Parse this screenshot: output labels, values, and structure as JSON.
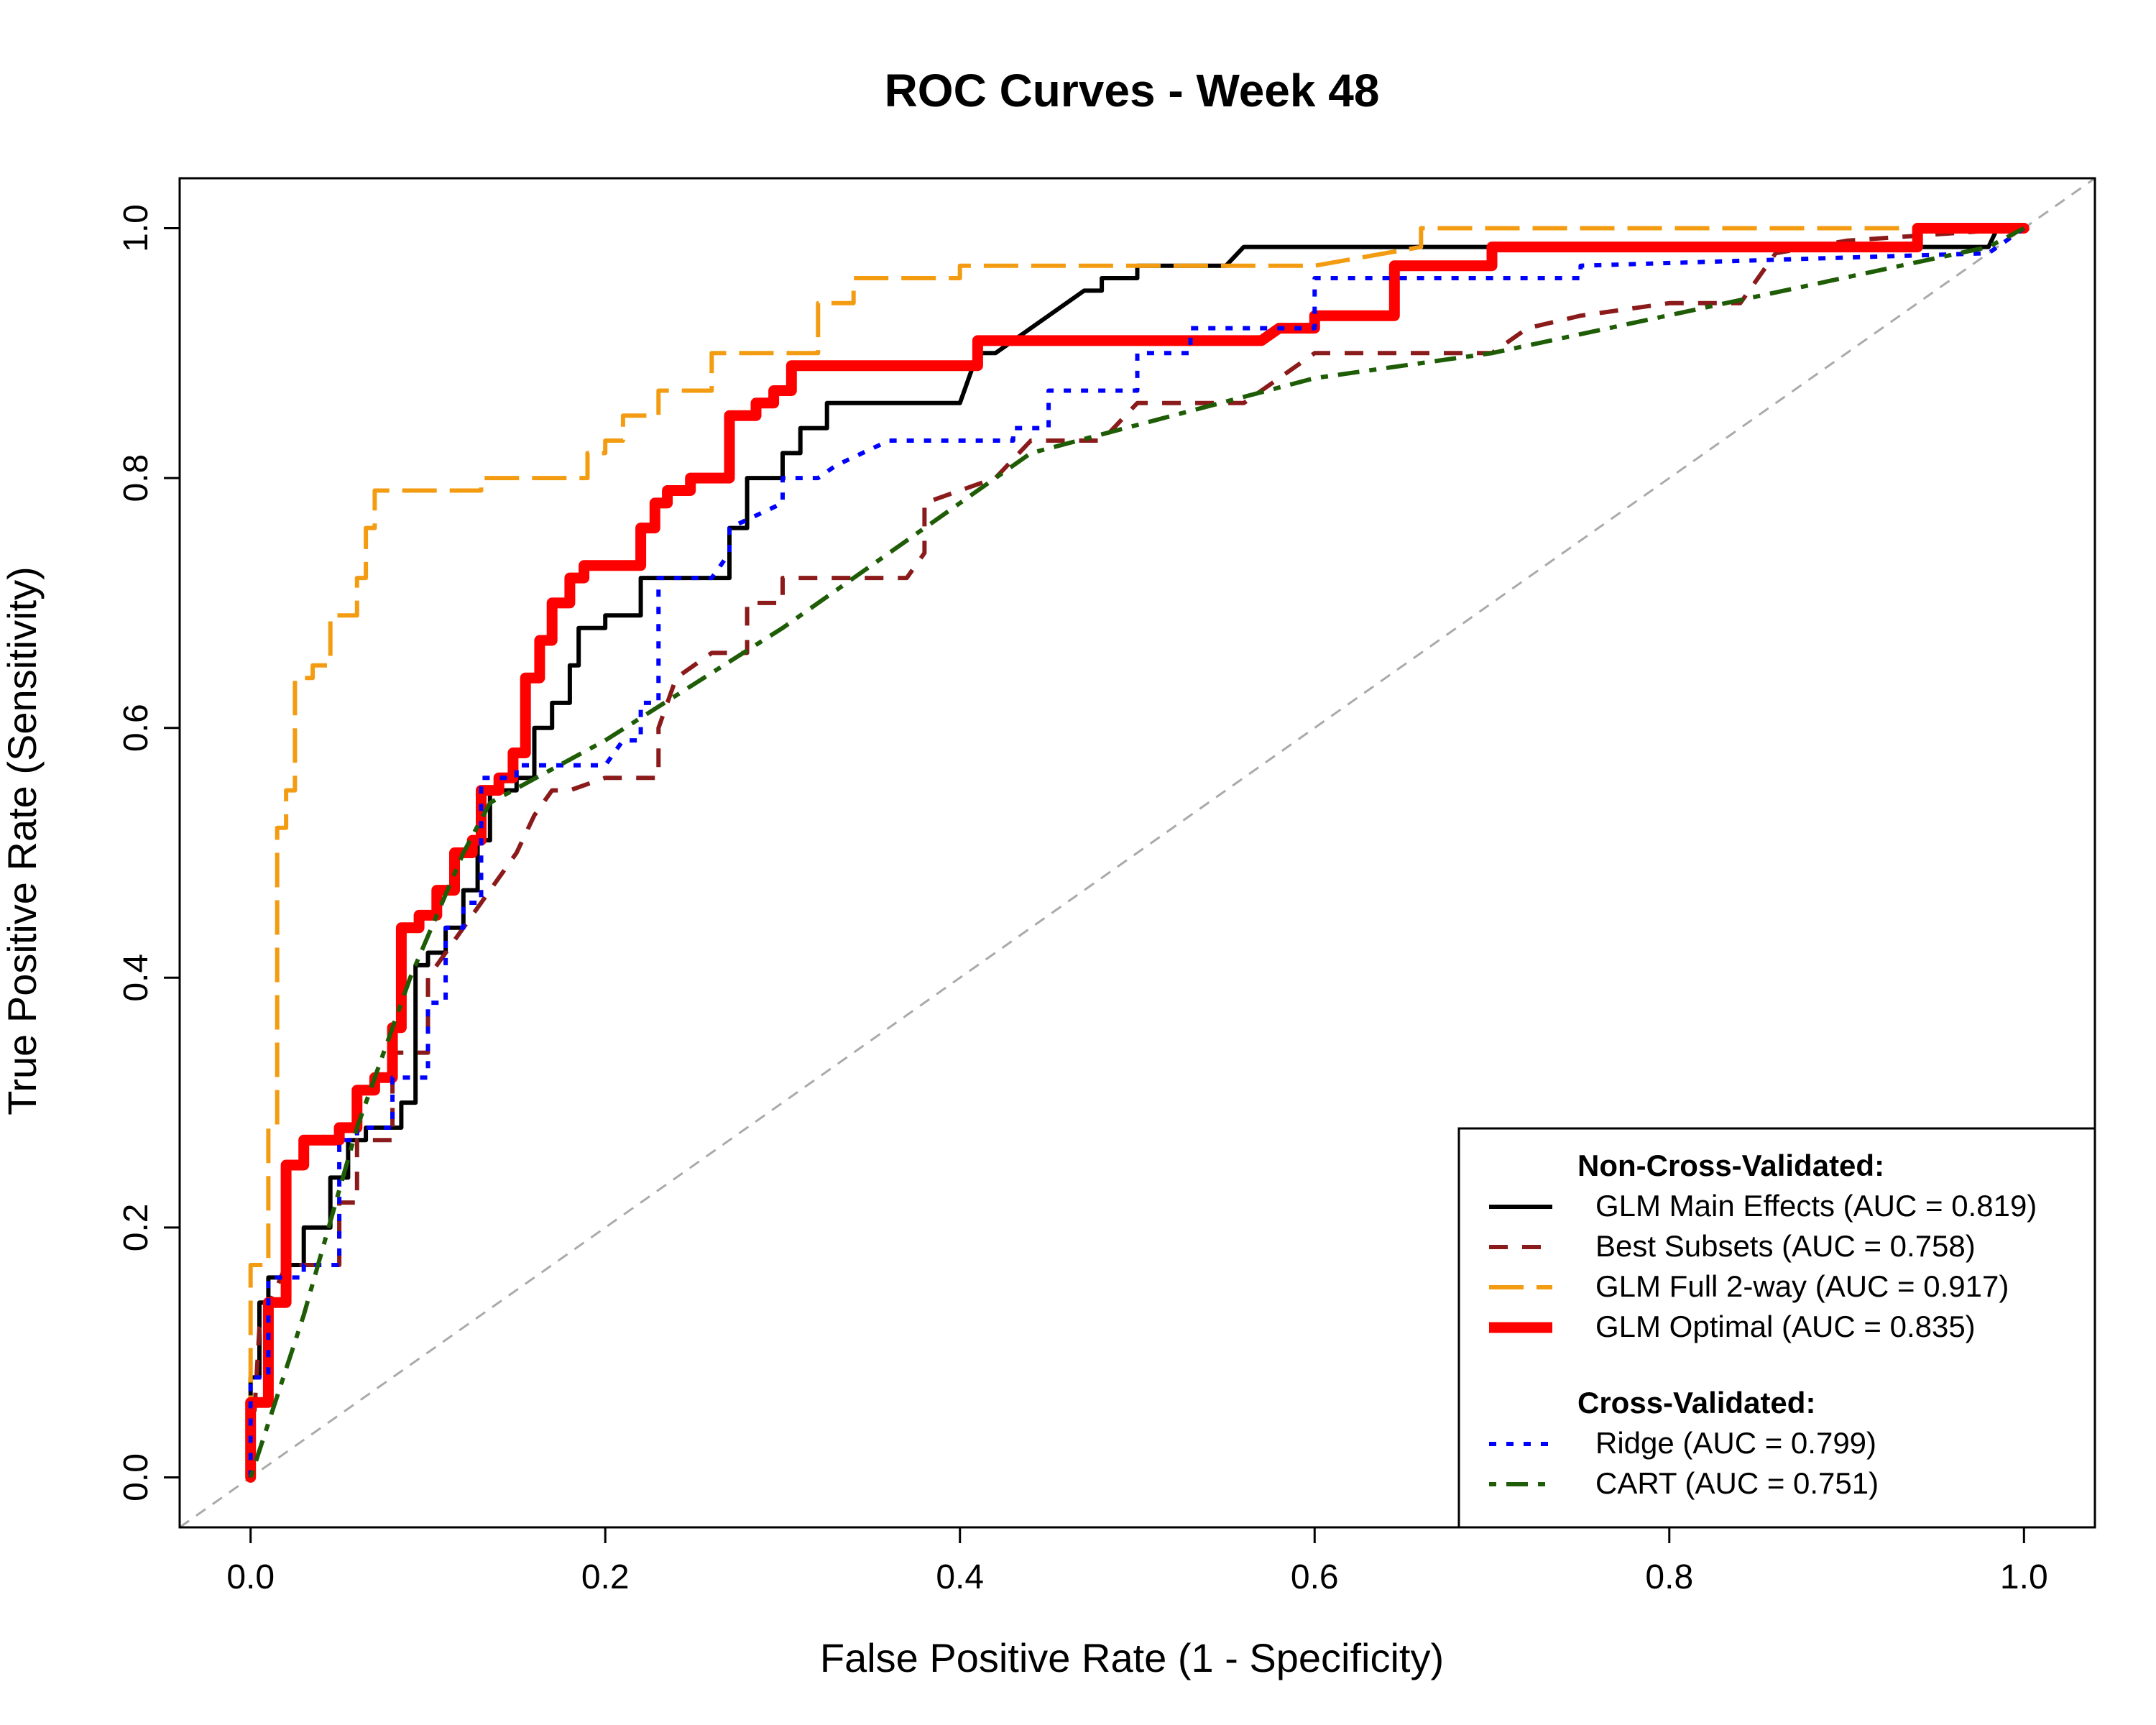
{
  "chart_data": {
    "type": "line",
    "title": "ROC Curves - Week 48",
    "xlabel": "False Positive Rate (1 - Specificity)",
    "ylabel": "True Positive Rate (Sensitivity)",
    "xlim": [
      0,
      1
    ],
    "ylim": [
      0,
      1
    ],
    "x_ticks": [
      "0.0",
      "0.2",
      "0.4",
      "0.6",
      "0.8",
      "1.0"
    ],
    "y_ticks": [
      "0.0",
      "0.2",
      "0.4",
      "0.6",
      "0.8",
      "1.0"
    ],
    "grid": false,
    "legend_position": "bottom-right",
    "legend_groups": [
      {
        "heading": "Non-Cross-Validated:",
        "series": [
          "glm_main",
          "best_subsets",
          "glm_full",
          "glm_optimal"
        ]
      },
      {
        "heading": "Cross-Validated:",
        "series": [
          "ridge",
          "cart"
        ]
      }
    ],
    "reference_line": {
      "x": [
        0,
        1
      ],
      "y": [
        0,
        1
      ],
      "color": "#aaaaaa",
      "style": "dashed"
    },
    "series": [
      {
        "id": "glm_main",
        "name": "GLM Main Effects (AUC = 0.819)",
        "color": "#000000",
        "style": "solid",
        "width": "medium",
        "x": [
          0,
          0,
          0.005,
          0.005,
          0.01,
          0.01,
          0.02,
          0.02,
          0.03,
          0.03,
          0.045,
          0.045,
          0.055,
          0.055,
          0.065,
          0.065,
          0.085,
          0.085,
          0.093,
          0.093,
          0.1,
          0.1,
          0.11,
          0.11,
          0.12,
          0.12,
          0.128,
          0.128,
          0.135,
          0.135,
          0.15,
          0.15,
          0.16,
          0.16,
          0.17,
          0.17,
          0.18,
          0.18,
          0.185,
          0.185,
          0.2,
          0.2,
          0.22,
          0.22,
          0.235,
          0.235,
          0.27,
          0.27,
          0.28,
          0.28,
          0.3,
          0.3,
          0.31,
          0.31,
          0.325,
          0.325,
          0.34,
          0.34,
          0.4,
          0.41,
          0.42,
          0.43,
          0.44,
          0.45,
          0.46,
          0.47,
          0.48,
          0.48,
          0.5,
          0.5,
          0.55,
          0.56,
          0.98,
          0.985,
          1
        ],
        "y": [
          0,
          0.08,
          0.08,
          0.14,
          0.14,
          0.16,
          0.16,
          0.17,
          0.17,
          0.2,
          0.2,
          0.24,
          0.24,
          0.27,
          0.27,
          0.28,
          0.28,
          0.3,
          0.3,
          0.41,
          0.41,
          0.42,
          0.42,
          0.44,
          0.44,
          0.47,
          0.47,
          0.51,
          0.51,
          0.55,
          0.55,
          0.56,
          0.56,
          0.6,
          0.6,
          0.62,
          0.62,
          0.65,
          0.65,
          0.68,
          0.68,
          0.69,
          0.69,
          0.72,
          0.72,
          0.72,
          0.72,
          0.76,
          0.76,
          0.8,
          0.8,
          0.82,
          0.82,
          0.84,
          0.84,
          0.86,
          0.86,
          0.86,
          0.86,
          0.9,
          0.9,
          0.91,
          0.92,
          0.93,
          0.94,
          0.95,
          0.95,
          0.96,
          0.96,
          0.97,
          0.97,
          0.985,
          0.985,
          1,
          1
        ]
      },
      {
        "id": "best_subsets",
        "name": "Best Subsets (AUC = 0.758)",
        "color": "#8b1a1a",
        "style": "dashed",
        "width": "medium",
        "x": [
          0,
          0.005,
          0.02,
          0.05,
          0.05,
          0.06,
          0.06,
          0.08,
          0.08,
          0.1,
          0.1,
          0.12,
          0.13,
          0.14,
          0.15,
          0.16,
          0.17,
          0.18,
          0.2,
          0.23,
          0.23,
          0.24,
          0.26,
          0.27,
          0.28,
          0.28,
          0.3,
          0.3,
          0.37,
          0.38,
          0.38,
          0.4,
          0.42,
          0.44,
          0.48,
          0.5,
          0.56,
          0.58,
          0.6,
          0.7,
          0.72,
          0.75,
          0.8,
          0.84,
          0.86,
          0.9,
          1
        ],
        "y": [
          0,
          0.12,
          0.17,
          0.17,
          0.22,
          0.22,
          0.27,
          0.27,
          0.34,
          0.34,
          0.4,
          0.44,
          0.46,
          0.48,
          0.5,
          0.53,
          0.55,
          0.55,
          0.56,
          0.56,
          0.6,
          0.64,
          0.66,
          0.66,
          0.66,
          0.7,
          0.7,
          0.72,
          0.72,
          0.74,
          0.78,
          0.79,
          0.8,
          0.83,
          0.83,
          0.86,
          0.86,
          0.88,
          0.9,
          0.9,
          0.92,
          0.93,
          0.94,
          0.94,
          0.98,
          0.99,
          1
        ]
      },
      {
        "id": "glm_full",
        "name": "GLM Full 2-way (AUC = 0.917)",
        "color": "#f39c12",
        "style": "longdash",
        "width": "medium",
        "x": [
          0,
          0,
          0.01,
          0.01,
          0.015,
          0.015,
          0.02,
          0.02,
          0.025,
          0.025,
          0.035,
          0.035,
          0.045,
          0.045,
          0.06,
          0.06,
          0.065,
          0.065,
          0.07,
          0.07,
          0.08,
          0.08,
          0.13,
          0.13,
          0.19,
          0.19,
          0.2,
          0.2,
          0.21,
          0.21,
          0.23,
          0.23,
          0.26,
          0.26,
          0.32,
          0.32,
          0.34,
          0.34,
          0.4,
          0.4,
          0.6,
          0.66,
          0.66,
          1
        ],
        "y": [
          0,
          0.17,
          0.17,
          0.28,
          0.28,
          0.52,
          0.52,
          0.55,
          0.55,
          0.64,
          0.64,
          0.65,
          0.65,
          0.69,
          0.69,
          0.72,
          0.72,
          0.76,
          0.76,
          0.79,
          0.79,
          0.79,
          0.79,
          0.8,
          0.8,
          0.82,
          0.82,
          0.83,
          0.83,
          0.85,
          0.85,
          0.87,
          0.87,
          0.9,
          0.9,
          0.94,
          0.94,
          0.96,
          0.96,
          0.97,
          0.97,
          0.985,
          1,
          1
        ]
      },
      {
        "id": "glm_optimal",
        "name": "GLM Optimal (AUC = 0.835)",
        "color": "#ff0000",
        "style": "solid",
        "width": "thick",
        "x": [
          0,
          0,
          0.01,
          0.01,
          0.02,
          0.02,
          0.03,
          0.03,
          0.05,
          0.05,
          0.06,
          0.06,
          0.07,
          0.07,
          0.08,
          0.08,
          0.085,
          0.085,
          0.095,
          0.095,
          0.105,
          0.105,
          0.115,
          0.115,
          0.125,
          0.125,
          0.13,
          0.13,
          0.14,
          0.14,
          0.148,
          0.148,
          0.155,
          0.155,
          0.163,
          0.163,
          0.17,
          0.17,
          0.18,
          0.18,
          0.188,
          0.188,
          0.22,
          0.22,
          0.228,
          0.228,
          0.235,
          0.235,
          0.248,
          0.248,
          0.27,
          0.27,
          0.285,
          0.285,
          0.295,
          0.295,
          0.305,
          0.305,
          0.41,
          0.41,
          0.57,
          0.58,
          0.6,
          0.6,
          0.645,
          0.645,
          0.7,
          0.7,
          0.94,
          0.94,
          1
        ],
        "y": [
          0,
          0.06,
          0.06,
          0.14,
          0.14,
          0.25,
          0.25,
          0.27,
          0.27,
          0.28,
          0.28,
          0.31,
          0.31,
          0.32,
          0.32,
          0.36,
          0.36,
          0.44,
          0.44,
          0.45,
          0.45,
          0.47,
          0.47,
          0.5,
          0.5,
          0.51,
          0.51,
          0.55,
          0.55,
          0.56,
          0.56,
          0.58,
          0.58,
          0.64,
          0.64,
          0.67,
          0.67,
          0.7,
          0.7,
          0.72,
          0.72,
          0.73,
          0.73,
          0.76,
          0.76,
          0.78,
          0.78,
          0.79,
          0.79,
          0.8,
          0.8,
          0.85,
          0.85,
          0.86,
          0.86,
          0.87,
          0.87,
          0.89,
          0.89,
          0.91,
          0.91,
          0.92,
          0.92,
          0.93,
          0.93,
          0.97,
          0.97,
          0.985,
          0.985,
          1,
          1
        ]
      },
      {
        "id": "ridge",
        "name": "Ridge (AUC = 0.799)",
        "color": "#0000ff",
        "style": "dotted",
        "width": "medium",
        "x": [
          0,
          0,
          0.01,
          0.01,
          0.03,
          0.03,
          0.05,
          0.05,
          0.06,
          0.06,
          0.08,
          0.08,
          0.1,
          0.1,
          0.11,
          0.11,
          0.12,
          0.12,
          0.13,
          0.13,
          0.15,
          0.15,
          0.2,
          0.21,
          0.22,
          0.22,
          0.23,
          0.23,
          0.26,
          0.27,
          0.27,
          0.3,
          0.3,
          0.32,
          0.33,
          0.36,
          0.43,
          0.43,
          0.45,
          0.45,
          0.5,
          0.5,
          0.53,
          0.53,
          0.6,
          0.6,
          0.75,
          0.75,
          0.98,
          1
        ],
        "y": [
          0,
          0.08,
          0.08,
          0.16,
          0.16,
          0.17,
          0.17,
          0.27,
          0.27,
          0.28,
          0.28,
          0.32,
          0.32,
          0.38,
          0.38,
          0.44,
          0.44,
          0.46,
          0.46,
          0.56,
          0.56,
          0.57,
          0.57,
          0.59,
          0.59,
          0.62,
          0.62,
          0.72,
          0.72,
          0.74,
          0.76,
          0.78,
          0.8,
          0.8,
          0.81,
          0.83,
          0.83,
          0.84,
          0.84,
          0.87,
          0.87,
          0.9,
          0.9,
          0.92,
          0.92,
          0.96,
          0.96,
          0.97,
          0.98,
          1
        ]
      },
      {
        "id": "cart",
        "name": "CART (AUC = 0.751)",
        "color": "#1e5c05",
        "style": "dotdash",
        "width": "medium",
        "x": [
          0,
          0.03,
          0.06,
          0.09,
          0.12,
          0.135,
          0.2,
          0.3,
          0.35,
          0.44,
          0.6,
          0.7,
          0.98,
          1
        ],
        "y": [
          0,
          0.13,
          0.28,
          0.4,
          0.5,
          0.54,
          0.59,
          0.68,
          0.73,
          0.82,
          0.88,
          0.9,
          0.985,
          1
        ]
      }
    ]
  }
}
